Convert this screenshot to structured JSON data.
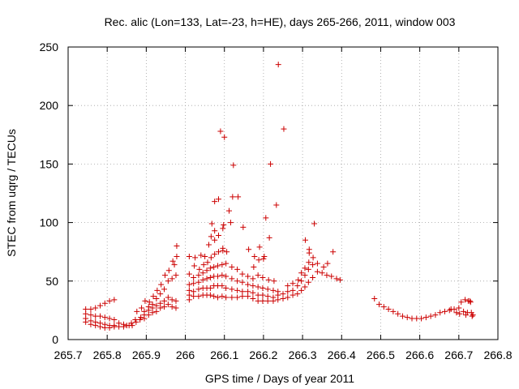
{
  "chart_data": {
    "type": "scatter",
    "title": "Rec. alic (Lon=133, Lat=-23, h=HE), days 265-266, 2011, window 003",
    "xlabel": "GPS time / Days of year 2011",
    "ylabel": "STEC from uqrg / TECUs",
    "xlim": [
      265.7,
      266.8
    ],
    "ylim": [
      0,
      250
    ],
    "grid": true,
    "marker": "+",
    "color": "#cc0000",
    "xticks": [
      265.7,
      265.8,
      265.9,
      266.0,
      266.1,
      266.2,
      266.3,
      266.4,
      266.5,
      266.6,
      266.7,
      266.8
    ],
    "xtick_labels": [
      "265.7",
      "265.8",
      "265.9",
      "266",
      "266.1",
      "266.2",
      "266.3",
      "266.4",
      "266.5",
      "266.6",
      "266.7",
      "266.8"
    ],
    "yticks": [
      0,
      50,
      100,
      150,
      200,
      250
    ],
    "ytick_labels": [
      "0",
      "50",
      "100",
      "150",
      "200",
      "250"
    ],
    "points": [
      [
        265.745,
        26
      ],
      [
        265.745,
        22
      ],
      [
        265.745,
        18
      ],
      [
        265.745,
        15
      ],
      [
        265.758,
        26
      ],
      [
        265.758,
        21
      ],
      [
        265.758,
        16
      ],
      [
        265.758,
        13
      ],
      [
        265.77,
        27
      ],
      [
        265.77,
        20
      ],
      [
        265.77,
        15
      ],
      [
        265.77,
        12
      ],
      [
        265.782,
        29
      ],
      [
        265.782,
        20
      ],
      [
        265.782,
        14
      ],
      [
        265.782,
        11
      ],
      [
        265.794,
        31
      ],
      [
        265.794,
        19
      ],
      [
        265.794,
        13
      ],
      [
        265.794,
        10
      ],
      [
        265.806,
        33
      ],
      [
        265.806,
        18
      ],
      [
        265.806,
        12
      ],
      [
        265.806,
        10
      ],
      [
        265.818,
        34
      ],
      [
        265.818,
        17
      ],
      [
        265.818,
        12
      ],
      [
        265.818,
        11
      ],
      [
        265.83,
        14
      ],
      [
        265.83,
        11
      ],
      [
        265.842,
        13
      ],
      [
        265.842,
        11
      ],
      [
        265.85,
        12
      ],
      [
        265.856,
        12
      ],
      [
        265.864,
        12
      ],
      [
        265.862,
        14
      ],
      [
        265.872,
        17
      ],
      [
        265.874,
        15
      ],
      [
        265.876,
        24
      ],
      [
        265.884,
        17
      ],
      [
        265.886,
        19
      ],
      [
        265.888,
        27
      ],
      [
        265.895,
        18
      ],
      [
        265.895,
        21
      ],
      [
        265.895,
        24
      ],
      [
        265.897,
        33
      ],
      [
        265.906,
        21
      ],
      [
        265.906,
        25
      ],
      [
        265.906,
        28
      ],
      [
        265.908,
        32
      ],
      [
        265.916,
        23
      ],
      [
        265.916,
        27
      ],
      [
        265.916,
        30
      ],
      [
        265.918,
        37
      ],
      [
        265.926,
        24
      ],
      [
        265.926,
        29
      ],
      [
        265.926,
        35
      ],
      [
        265.928,
        42
      ],
      [
        265.936,
        27
      ],
      [
        265.936,
        31
      ],
      [
        265.936,
        39
      ],
      [
        265.938,
        47
      ],
      [
        265.946,
        28
      ],
      [
        265.946,
        33
      ],
      [
        265.946,
        43
      ],
      [
        265.948,
        55
      ],
      [
        265.956,
        30
      ],
      [
        265.956,
        36
      ],
      [
        265.956,
        50
      ],
      [
        265.958,
        59
      ],
      [
        265.966,
        28
      ],
      [
        265.966,
        34
      ],
      [
        265.966,
        52
      ],
      [
        265.968,
        67
      ],
      [
        265.976,
        27
      ],
      [
        265.976,
        33
      ],
      [
        265.976,
        55
      ],
      [
        265.978,
        71
      ],
      [
        265.978,
        80
      ],
      [
        265.972,
        64
      ],
      [
        266.01,
        34
      ],
      [
        266.01,
        38
      ],
      [
        266.01,
        42
      ],
      [
        266.01,
        47
      ],
      [
        266.01,
        56
      ],
      [
        266.01,
        71
      ],
      [
        266.021,
        37
      ],
      [
        266.021,
        41
      ],
      [
        266.021,
        48
      ],
      [
        266.021,
        53
      ],
      [
        266.023,
        63
      ],
      [
        266.025,
        70
      ],
      [
        266.034,
        37
      ],
      [
        266.034,
        43
      ],
      [
        266.034,
        49
      ],
      [
        266.034,
        55
      ],
      [
        266.036,
        60
      ],
      [
        266.04,
        72
      ],
      [
        266.045,
        38
      ],
      [
        266.045,
        44
      ],
      [
        266.045,
        51
      ],
      [
        266.045,
        57
      ],
      [
        266.047,
        64
      ],
      [
        266.05,
        71
      ],
      [
        266.055,
        38
      ],
      [
        266.055,
        44
      ],
      [
        266.055,
        52
      ],
      [
        266.055,
        59
      ],
      [
        266.057,
        66
      ],
      [
        266.06,
        81
      ],
      [
        266.064,
        38
      ],
      [
        266.064,
        44
      ],
      [
        266.064,
        53
      ],
      [
        266.064,
        61
      ],
      [
        266.066,
        70
      ],
      [
        266.066,
        88
      ],
      [
        266.068,
        99
      ],
      [
        266.073,
        37
      ],
      [
        266.073,
        46
      ],
      [
        266.073,
        54
      ],
      [
        266.073,
        62
      ],
      [
        266.075,
        73
      ],
      [
        266.075,
        85
      ],
      [
        266.075,
        93
      ],
      [
        266.075,
        118
      ],
      [
        266.083,
        36
      ],
      [
        266.083,
        46
      ],
      [
        266.083,
        54
      ],
      [
        266.083,
        63
      ],
      [
        266.085,
        75
      ],
      [
        266.085,
        89
      ],
      [
        266.085,
        120
      ],
      [
        266.09,
        178
      ],
      [
        266.094,
        37
      ],
      [
        266.094,
        46
      ],
      [
        266.094,
        55
      ],
      [
        266.094,
        64
      ],
      [
        266.096,
        76
      ],
      [
        266.096,
        78
      ],
      [
        266.096,
        95
      ],
      [
        266.098,
        98
      ],
      [
        266.1,
        173
      ],
      [
        266.104,
        36
      ],
      [
        266.104,
        44
      ],
      [
        266.104,
        54
      ],
      [
        266.104,
        65
      ],
      [
        266.106,
        75
      ],
      [
        266.112,
        110
      ],
      [
        266.116,
        100
      ],
      [
        266.119,
        36
      ],
      [
        266.119,
        43
      ],
      [
        266.119,
        52
      ],
      [
        266.119,
        62
      ],
      [
        266.121,
        122
      ],
      [
        266.123,
        149
      ],
      [
        266.133,
        36
      ],
      [
        266.133,
        42
      ],
      [
        266.133,
        50
      ],
      [
        266.133,
        60
      ],
      [
        266.135,
        122
      ],
      [
        266.146,
        37
      ],
      [
        266.146,
        41
      ],
      [
        266.146,
        49
      ],
      [
        266.146,
        56
      ],
      [
        266.148,
        96
      ],
      [
        266.16,
        37
      ],
      [
        266.16,
        41
      ],
      [
        266.16,
        47
      ],
      [
        266.16,
        54
      ],
      [
        266.162,
        77
      ],
      [
        266.173,
        35
      ],
      [
        266.173,
        40
      ],
      [
        266.173,
        46
      ],
      [
        266.173,
        52
      ],
      [
        266.175,
        62
      ],
      [
        266.177,
        71
      ],
      [
        266.186,
        33
      ],
      [
        266.186,
        38
      ],
      [
        266.186,
        45
      ],
      [
        266.186,
        55
      ],
      [
        266.188,
        68
      ],
      [
        266.19,
        79
      ],
      [
        266.198,
        33
      ],
      [
        266.198,
        38
      ],
      [
        266.198,
        44
      ],
      [
        266.198,
        53
      ],
      [
        266.2,
        69
      ],
      [
        266.202,
        71
      ],
      [
        266.206,
        104
      ],
      [
        266.211,
        33
      ],
      [
        266.211,
        37
      ],
      [
        266.211,
        43
      ],
      [
        266.213,
        51
      ],
      [
        266.215,
        87
      ],
      [
        266.218,
        150
      ],
      [
        266.225,
        33
      ],
      [
        266.225,
        36
      ],
      [
        266.225,
        42
      ],
      [
        266.227,
        50
      ],
      [
        266.233,
        115
      ],
      [
        266.238,
        235
      ],
      [
        266.237,
        34
      ],
      [
        266.237,
        38
      ],
      [
        266.237,
        41
      ],
      [
        266.25,
        35
      ],
      [
        266.25,
        39
      ],
      [
        266.252,
        180
      ],
      [
        266.262,
        36
      ],
      [
        266.262,
        41
      ],
      [
        266.262,
        46
      ],
      [
        266.275,
        38
      ],
      [
        266.275,
        42
      ],
      [
        266.275,
        48
      ],
      [
        266.287,
        39
      ],
      [
        266.287,
        46
      ],
      [
        266.289,
        51
      ],
      [
        266.297,
        42
      ],
      [
        266.297,
        50
      ],
      [
        266.297,
        57
      ],
      [
        266.306,
        45
      ],
      [
        266.306,
        55
      ],
      [
        266.306,
        61
      ],
      [
        266.307,
        85
      ],
      [
        266.315,
        49
      ],
      [
        266.315,
        60
      ],
      [
        266.316,
        66
      ],
      [
        266.317,
        77
      ],
      [
        266.317,
        74
      ],
      [
        266.326,
        53
      ],
      [
        266.326,
        64
      ],
      [
        266.327,
        70
      ],
      [
        266.33,
        99
      ],
      [
        266.338,
        58
      ],
      [
        266.338,
        65
      ],
      [
        266.35,
        57
      ],
      [
        266.354,
        62
      ],
      [
        266.362,
        55
      ],
      [
        266.364,
        65
      ],
      [
        266.374,
        54
      ],
      [
        266.378,
        75
      ],
      [
        266.387,
        52
      ],
      [
        266.396,
        51
      ],
      [
        266.484,
        35
      ],
      [
        266.496,
        30
      ],
      [
        266.508,
        28
      ],
      [
        266.52,
        26
      ],
      [
        266.532,
        24
      ],
      [
        266.544,
        22
      ],
      [
        266.556,
        20
      ],
      [
        266.568,
        19
      ],
      [
        266.58,
        18
      ],
      [
        266.592,
        18
      ],
      [
        266.604,
        18
      ],
      [
        266.616,
        19
      ],
      [
        266.628,
        20
      ],
      [
        266.64,
        21
      ],
      [
        266.652,
        23
      ],
      [
        266.664,
        24
      ],
      [
        266.676,
        25
      ],
      [
        266.688,
        26
      ],
      [
        266.68,
        26
      ],
      [
        266.694,
        23
      ],
      [
        266.7,
        27
      ],
      [
        266.702,
        22
      ],
      [
        266.706,
        32
      ],
      [
        266.712,
        24
      ],
      [
        266.716,
        34
      ],
      [
        266.718,
        21
      ],
      [
        266.722,
        23
      ],
      [
        266.724,
        33
      ],
      [
        266.728,
        33
      ],
      [
        266.732,
        23
      ],
      [
        266.734,
        20
      ],
      [
        266.736,
        21
      ],
      [
        266.73,
        32
      ]
    ]
  }
}
